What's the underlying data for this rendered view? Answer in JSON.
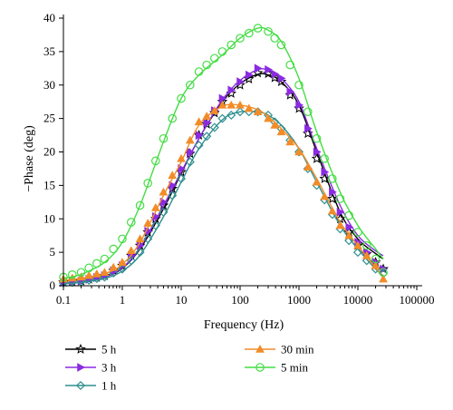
{
  "chart_data": {
    "type": "line",
    "title": "",
    "xlabel": "Frequency (Hz)",
    "ylabel": "−Phase (deg)",
    "x_scale": "log",
    "xlim": [
      0.1,
      100000
    ],
    "ylim": [
      0,
      40
    ],
    "x_ticks": [
      "0.1",
      "1",
      "10",
      "100",
      "1000",
      "10000",
      "100000"
    ],
    "y_ticks": [
      "0",
      "5",
      "10",
      "15",
      "20",
      "25",
      "30",
      "35",
      "40"
    ],
    "grid": false,
    "legend_position": "bottom",
    "series": [
      {
        "name": "5 h",
        "color": "#000000",
        "marker": "star",
        "data": [
          [
            0.1,
            0.5
          ],
          [
            0.2,
            0.7
          ],
          [
            0.5,
            1.5
          ],
          [
            1,
            3
          ],
          [
            2,
            6
          ],
          [
            5,
            12
          ],
          [
            10,
            17
          ],
          [
            20,
            22.5
          ],
          [
            50,
            27.5
          ],
          [
            100,
            30
          ],
          [
            200,
            31.8
          ],
          [
            300,
            31.7
          ],
          [
            500,
            30.5
          ],
          [
            1000,
            26.5
          ],
          [
            2000,
            19
          ],
          [
            5000,
            10
          ],
          [
            10000,
            6
          ],
          [
            20000,
            3.5
          ],
          [
            27000,
            2.5
          ]
        ],
        "fit": [
          [
            0.1,
            0.4
          ],
          [
            0.2,
            0.6
          ],
          [
            0.5,
            1.3
          ],
          [
            1,
            2.6
          ],
          [
            2,
            5.5
          ],
          [
            5,
            11.5
          ],
          [
            10,
            16.8
          ],
          [
            20,
            22
          ],
          [
            50,
            27.5
          ],
          [
            100,
            30.2
          ],
          [
            200,
            31.6
          ],
          [
            300,
            31.5
          ],
          [
            500,
            30.5
          ],
          [
            1000,
            27
          ],
          [
            2000,
            20
          ],
          [
            5000,
            11
          ],
          [
            10000,
            7
          ],
          [
            20000,
            4.8
          ],
          [
            27000,
            4
          ]
        ]
      },
      {
        "name": "3 h",
        "color": "#8A2BE2",
        "marker": "triangle-right",
        "data": [
          [
            0.1,
            0.5
          ],
          [
            0.2,
            0.7
          ],
          [
            0.5,
            1.5
          ],
          [
            1,
            3
          ],
          [
            2,
            6
          ],
          [
            5,
            12.5
          ],
          [
            10,
            17.5
          ],
          [
            20,
            22.5
          ],
          [
            50,
            28
          ],
          [
            100,
            30.5
          ],
          [
            200,
            32.5
          ],
          [
            300,
            32.3
          ],
          [
            500,
            31
          ],
          [
            1000,
            27
          ],
          [
            2000,
            20
          ],
          [
            5000,
            11
          ],
          [
            10000,
            6.5
          ],
          [
            20000,
            3.5
          ],
          [
            27000,
            2.5
          ]
        ],
        "fit": [
          [
            0.1,
            0.4
          ],
          [
            0.2,
            0.6
          ],
          [
            0.5,
            1.3
          ],
          [
            1,
            2.7
          ],
          [
            2,
            5.7
          ],
          [
            5,
            12
          ],
          [
            10,
            17
          ],
          [
            20,
            22
          ],
          [
            50,
            27.8
          ],
          [
            100,
            30.7
          ],
          [
            200,
            32.3
          ],
          [
            300,
            32.2
          ],
          [
            500,
            31
          ],
          [
            1000,
            27.5
          ],
          [
            2000,
            20.5
          ],
          [
            5000,
            12
          ],
          [
            10000,
            7.5
          ],
          [
            20000,
            5.2
          ],
          [
            27000,
            4.5
          ]
        ]
      },
      {
        "name": "1 h",
        "color": "#2F8F8F",
        "marker": "diamond",
        "data": [
          [
            0.1,
            0.4
          ],
          [
            0.2,
            0.6
          ],
          [
            0.5,
            1.3
          ],
          [
            1,
            2.5
          ],
          [
            2,
            5
          ],
          [
            5,
            11
          ],
          [
            10,
            16
          ],
          [
            20,
            21
          ],
          [
            50,
            25
          ],
          [
            100,
            26
          ],
          [
            200,
            26
          ],
          [
            300,
            25.5
          ],
          [
            500,
            23.5
          ],
          [
            1000,
            20
          ],
          [
            2000,
            15
          ],
          [
            5000,
            8.5
          ],
          [
            10000,
            5
          ],
          [
            20000,
            2.5
          ],
          [
            27000,
            1.8
          ]
        ],
        "fit": [
          [
            0.1,
            0.3
          ],
          [
            0.2,
            0.5
          ],
          [
            0.5,
            1.1
          ],
          [
            1,
            2.2
          ],
          [
            2,
            4.6
          ],
          [
            5,
            10.3
          ],
          [
            10,
            15.5
          ],
          [
            20,
            20.5
          ],
          [
            50,
            24.8
          ],
          [
            100,
            26
          ],
          [
            200,
            26
          ],
          [
            300,
            25.5
          ],
          [
            500,
            24
          ],
          [
            1000,
            20.5
          ],
          [
            2000,
            15.5
          ],
          [
            5000,
            9
          ],
          [
            10000,
            5.5
          ],
          [
            20000,
            2.5
          ],
          [
            27000,
            1.5
          ]
        ]
      },
      {
        "name": "30 min",
        "color": "#F28C28",
        "marker": "triangle-up",
        "data": [
          [
            0.1,
            1
          ],
          [
            0.2,
            1.3
          ],
          [
            0.5,
            2
          ],
          [
            1,
            3.5
          ],
          [
            2,
            7
          ],
          [
            5,
            14
          ],
          [
            10,
            19
          ],
          [
            20,
            24.5
          ],
          [
            50,
            27
          ],
          [
            100,
            27
          ],
          [
            200,
            26
          ],
          [
            300,
            25
          ],
          [
            500,
            23
          ],
          [
            1000,
            20
          ],
          [
            2000,
            15.5
          ],
          [
            5000,
            9
          ],
          [
            10000,
            6
          ],
          [
            20000,
            3
          ],
          [
            27000,
            1
          ]
        ],
        "fit": [
          [
            0.1,
            0.8
          ],
          [
            0.2,
            1.1
          ],
          [
            0.5,
            1.8
          ],
          [
            1,
            3.2
          ],
          [
            2,
            6.5
          ],
          [
            5,
            13.5
          ],
          [
            10,
            18.5
          ],
          [
            20,
            24
          ],
          [
            50,
            26.8
          ],
          [
            100,
            27
          ],
          [
            200,
            26.3
          ],
          [
            300,
            25.3
          ],
          [
            500,
            23.5
          ],
          [
            1000,
            20.5
          ],
          [
            2000,
            16
          ],
          [
            5000,
            9.5
          ],
          [
            10000,
            6
          ],
          [
            20000,
            2.7
          ],
          [
            27000,
            1.2
          ]
        ]
      },
      {
        "name": "5 min",
        "color": "#44DD44",
        "marker": "circle",
        "data": [
          [
            0.1,
            1.3
          ],
          [
            0.2,
            2
          ],
          [
            0.5,
            4
          ],
          [
            1,
            7
          ],
          [
            2,
            12
          ],
          [
            5,
            22
          ],
          [
            10,
            28
          ],
          [
            20,
            32
          ],
          [
            50,
            35
          ],
          [
            100,
            37
          ],
          [
            200,
            38.5
          ],
          [
            300,
            38
          ],
          [
            500,
            36
          ],
          [
            1000,
            30
          ],
          [
            2000,
            22
          ],
          [
            5000,
            13
          ],
          [
            10000,
            8
          ],
          [
            20000,
            4
          ],
          [
            27000,
            2
          ]
        ],
        "fit": [
          [
            0.1,
            1.1
          ],
          [
            0.2,
            1.7
          ],
          [
            0.5,
            3.5
          ],
          [
            1,
            6.5
          ],
          [
            2,
            12
          ],
          [
            5,
            21.5
          ],
          [
            10,
            28
          ],
          [
            20,
            31.5
          ],
          [
            50,
            34.5
          ],
          [
            100,
            37
          ],
          [
            200,
            38.5
          ],
          [
            300,
            38.2
          ],
          [
            500,
            36.5
          ],
          [
            1000,
            31
          ],
          [
            2000,
            23
          ],
          [
            5000,
            14
          ],
          [
            10000,
            9
          ],
          [
            20000,
            5.5
          ],
          [
            27000,
            4
          ]
        ]
      }
    ]
  }
}
